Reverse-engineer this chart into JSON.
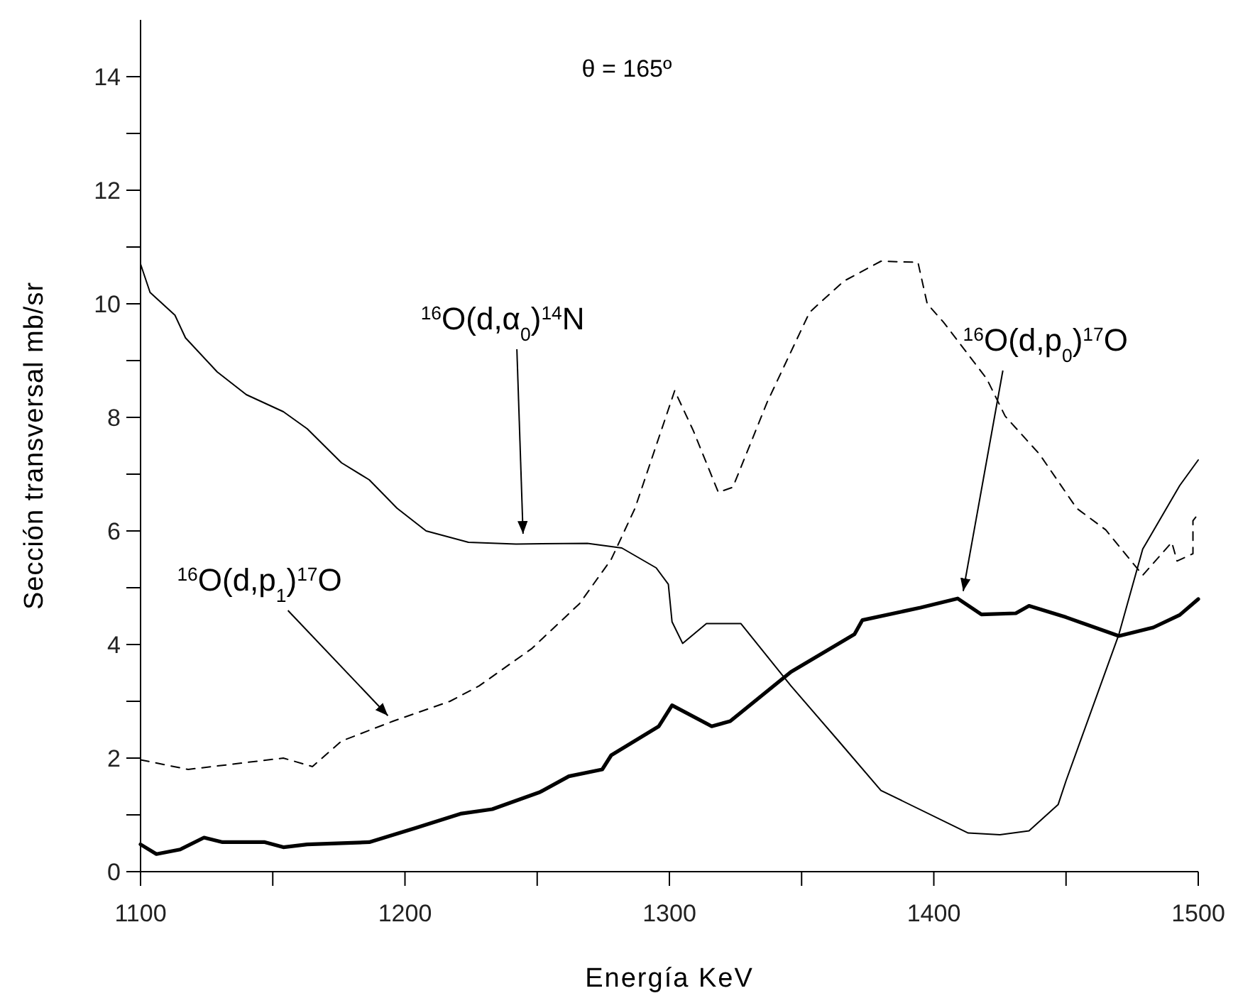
{
  "chart_data": {
    "type": "line",
    "title": "θ = 165º",
    "xlabel": "Energía  KeV",
    "ylabel": "Sección transversal  mb/sr",
    "xlim": [
      1100,
      1500
    ],
    "ylim": [
      0,
      15
    ],
    "xticks": [
      1100,
      {
        "value": 1150,
        "label": null
      },
      1200,
      {
        "value": 1250,
        "label": null
      },
      1300,
      {
        "value": 1350,
        "label": null
      },
      1400,
      {
        "value": 1450,
        "label": null
      },
      1500
    ],
    "yticks": [
      0,
      {
        "value": 1,
        "label": null
      },
      2,
      {
        "value": 3,
        "label": null
      },
      4,
      {
        "value": 5,
        "label": null
      },
      6,
      {
        "value": 7,
        "label": null
      },
      8,
      {
        "value": 9,
        "label": null
      },
      10,
      {
        "value": 11,
        "label": null
      },
      12,
      {
        "value": 13,
        "label": null
      },
      14
    ],
    "grid": false,
    "series": [
      {
        "color": "#000000",
        "line_style": "solid",
        "x": [
          1100,
          1103.6,
          1113,
          1117,
          1129,
          1140,
          1154,
          1163,
          1176,
          1186.5,
          1197,
          1208,
          1224,
          1242,
          1269,
          1282,
          1295,
          1299.6,
          1301,
          1305,
          1314,
          1327,
          1346,
          1364,
          1380,
          1413,
          1425,
          1436,
          1447,
          1450,
          1470,
          1479,
          1493,
          1500
        ],
        "values": [
          10.7,
          10.2,
          9.8,
          9.4,
          8.8,
          8.4,
          8.1,
          7.8,
          7.2,
          6.9,
          6.4,
          6.0,
          5.8,
          5.77,
          5.78,
          5.7,
          5.35,
          5.06,
          4.4,
          4.02,
          4.37,
          4.37,
          3.27,
          2.3,
          1.43,
          0.68,
          0.65,
          0.72,
          1.18,
          1.6,
          4.18,
          5.68,
          6.8,
          7.25
        ]
      },
      {
        "color": "#000000",
        "line_style": "dashed",
        "x": [
          1100,
          1118,
          1136,
          1154,
          1165,
          1176,
          1195.5,
          1217,
          1228,
          1248,
          1266,
          1278,
          1287,
          1302,
          1309,
          1318.5,
          1324,
          1337,
          1353,
          1366,
          1380,
          1394,
          1397.5,
          1403.6,
          1420,
          1427,
          1440,
          1454,
          1465,
          1479,
          1490,
          1492,
          1498,
          1498,
          1500
        ],
        "values": [
          1.97,
          1.8,
          1.9,
          2.0,
          1.85,
          2.3,
          2.65,
          3.0,
          3.27,
          3.93,
          4.72,
          5.5,
          6.4,
          8.47,
          7.77,
          6.68,
          6.77,
          8.27,
          9.85,
          10.4,
          10.75,
          10.73,
          10.0,
          9.68,
          8.68,
          8.02,
          7.35,
          6.4,
          6.02,
          5.22,
          5.8,
          5.47,
          5.6,
          6.18,
          6.3
        ]
      },
      {
        "color": "#000000",
        "line_style": "solid",
        "x": [
          1100,
          1106,
          1115,
          1124,
          1131,
          1147,
          1154,
          1163,
          1186.5,
          1204,
          1221,
          1233,
          1251,
          1262,
          1274.6,
          1278,
          1296,
          1301,
          1316,
          1323,
          1346,
          1370,
          1373,
          1395,
          1409,
          1418,
          1431,
          1436,
          1450,
          1470,
          1483,
          1493,
          1500
        ],
        "values": [
          0.48,
          0.31,
          0.39,
          0.6,
          0.52,
          0.52,
          0.43,
          0.48,
          0.52,
          0.77,
          1.02,
          1.1,
          1.4,
          1.68,
          1.8,
          2.05,
          2.56,
          2.93,
          2.56,
          2.65,
          3.52,
          4.18,
          4.43,
          4.65,
          4.81,
          4.53,
          4.55,
          4.68,
          4.48,
          4.15,
          4.3,
          4.52,
          4.8
        ]
      }
    ],
    "annotations": [
      {
        "text": "$^{16}$O(d,α$_{0}$)$^{14}$N",
        "x": 1245,
        "y": 5.8
      },
      {
        "text": "$^{16}$O(d,p$_{1}$)$^{17}$O",
        "x": 1196,
        "y": 2.65
      },
      {
        "text": "$^{16}$O(d,p$_{0}$)$^{17}$O",
        "x": 1410,
        "y": 4.8
      }
    ]
  }
}
